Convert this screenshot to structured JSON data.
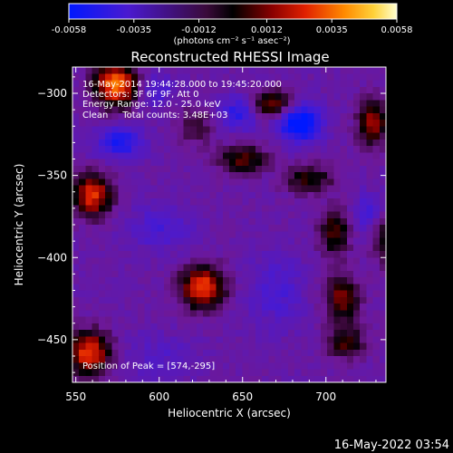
{
  "chart_data": {
    "type": "heatmap",
    "title": "Reconstructed RHESSI Image",
    "xlabel": "Heliocentric X (arcsec)",
    "ylabel": "Heliocentric Y (arcsec)",
    "xlim": [
      548,
      736
    ],
    "ylim": [
      -476,
      -284
    ],
    "xticks": [
      550,
      600,
      650,
      700
    ],
    "yticks": [
      -300,
      -350,
      -400,
      -450
    ],
    "colorbar": {
      "range": [
        -0.0058,
        0.0058
      ],
      "ticks": [
        "-0.0058",
        "-0.0035",
        "-0.0012",
        "0.0012",
        "0.0035",
        "0.0058"
      ],
      "tick_values": [
        -0.0058,
        -0.0035,
        -0.0012,
        0.0012,
        0.0035,
        0.0058
      ],
      "label": "(photons cm⁻² s⁻¹ asec⁻²)"
    },
    "annotations": [
      "16-May-2014 19:44:28.000 to 19:45:20.000",
      "Detectors: 3F 6F 9F, Att 0",
      "Energy Range: 12.0 - 25.0 keV",
      "Clean     Total counts: 3.48E+03"
    ],
    "peak_label": "Position of Peak = [574,-295]",
    "footer_date": "16-May-2022 03:54",
    "sources": [
      {
        "x": 574,
        "y": -295,
        "amp": 0.0058,
        "sx": 9,
        "sy": 9
      },
      {
        "x": 560,
        "y": -362,
        "amp": 0.0048,
        "sx": 8,
        "sy": 9
      },
      {
        "x": 626,
        "y": -418,
        "amp": 0.0052,
        "sx": 9,
        "sy": 9
      },
      {
        "x": 558,
        "y": -458,
        "amp": 0.005,
        "sx": 9,
        "sy": 9
      },
      {
        "x": 668,
        "y": -307,
        "amp": 0.0035,
        "sx": 9,
        "sy": 6
      },
      {
        "x": 650,
        "y": -340,
        "amp": 0.003,
        "sx": 10,
        "sy": 6
      },
      {
        "x": 690,
        "y": -352,
        "amp": 0.0026,
        "sx": 10,
        "sy": 6
      },
      {
        "x": 705,
        "y": -385,
        "amp": 0.003,
        "sx": 6,
        "sy": 10
      },
      {
        "x": 710,
        "y": -425,
        "amp": 0.0034,
        "sx": 7,
        "sy": 10
      },
      {
        "x": 712,
        "y": -452,
        "amp": 0.0026,
        "sx": 8,
        "sy": 7
      },
      {
        "x": 728,
        "y": -318,
        "amp": 0.004,
        "sx": 6,
        "sy": 9
      },
      {
        "x": 622,
        "y": -320,
        "amp": 0.0016,
        "sx": 8,
        "sy": 8
      },
      {
        "x": 735,
        "y": -390,
        "amp": 0.0022,
        "sx": 5,
        "sy": 10
      },
      {
        "x": 684,
        "y": -318,
        "amp": -0.0045,
        "sx": 9,
        "sy": 8
      },
      {
        "x": 648,
        "y": -312,
        "amp": -0.0025,
        "sx": 8,
        "sy": 7
      },
      {
        "x": 576,
        "y": -330,
        "amp": -0.0028,
        "sx": 10,
        "sy": 7
      },
      {
        "x": 598,
        "y": -298,
        "amp": -0.0018,
        "sx": 7,
        "sy": 7
      },
      {
        "x": 600,
        "y": -382,
        "amp": -0.0015,
        "sx": 14,
        "sy": 10
      },
      {
        "x": 670,
        "y": -420,
        "amp": -0.0015,
        "sx": 12,
        "sy": 16
      },
      {
        "x": 724,
        "y": -372,
        "amp": -0.0016,
        "sx": 6,
        "sy": 8
      },
      {
        "x": 600,
        "y": -460,
        "amp": -0.001,
        "sx": 16,
        "sy": 10
      }
    ]
  }
}
